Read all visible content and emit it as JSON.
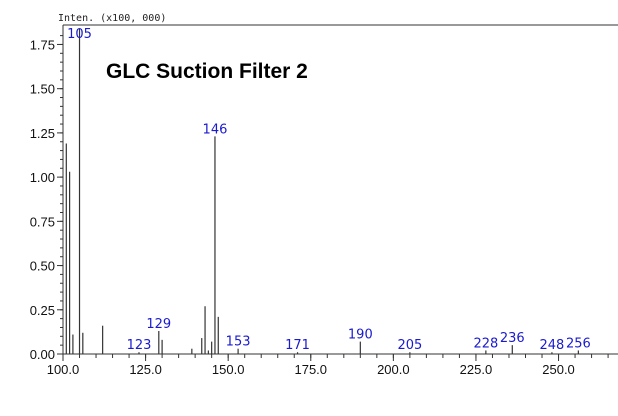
{
  "chart_data": {
    "type": "bar",
    "title": "GLC Suction Filter 2",
    "ylabel": "Inten. (x100, 000)",
    "xlabel": "",
    "xlim": [
      100,
      268
    ],
    "ylim": [
      0,
      1.86
    ],
    "xticks": [
      "100.0",
      "125.0",
      "150.0",
      "175.0",
      "200.0",
      "225.0",
      "250.0"
    ],
    "yticks": [
      "0.00",
      "0.25",
      "0.50",
      "0.75",
      "1.00",
      "1.25",
      "1.50",
      "1.75"
    ],
    "grid": false,
    "peaks": [
      {
        "mz": 101,
        "intensity": 1.19
      },
      {
        "mz": 102,
        "intensity": 1.03
      },
      {
        "mz": 103,
        "intensity": 0.11
      },
      {
        "mz": 105,
        "intensity": 1.84,
        "label": "105"
      },
      {
        "mz": 106,
        "intensity": 0.12
      },
      {
        "mz": 112,
        "intensity": 0.16
      },
      {
        "mz": 123,
        "intensity": 0.01,
        "label": "123"
      },
      {
        "mz": 129,
        "intensity": 0.13,
        "label": "129"
      },
      {
        "mz": 130,
        "intensity": 0.08
      },
      {
        "mz": 139,
        "intensity": 0.03
      },
      {
        "mz": 142,
        "intensity": 0.09
      },
      {
        "mz": 143,
        "intensity": 0.27
      },
      {
        "mz": 144,
        "intensity": 0.02
      },
      {
        "mz": 145,
        "intensity": 0.07
      },
      {
        "mz": 146,
        "intensity": 1.23,
        "label": "146"
      },
      {
        "mz": 147,
        "intensity": 0.21
      },
      {
        "mz": 153,
        "intensity": 0.03,
        "label": "153"
      },
      {
        "mz": 171,
        "intensity": 0.01,
        "label": "171"
      },
      {
        "mz": 190,
        "intensity": 0.07,
        "label": "190"
      },
      {
        "mz": 205,
        "intensity": 0.01,
        "label": "205"
      },
      {
        "mz": 228,
        "intensity": 0.02,
        "label": "228"
      },
      {
        "mz": 236,
        "intensity": 0.05,
        "label": "236"
      },
      {
        "mz": 248,
        "intensity": 0.01,
        "label": "248"
      },
      {
        "mz": 256,
        "intensity": 0.02,
        "label": "256"
      }
    ],
    "colors": {
      "peak": "#333333",
      "label": "#1a1ad0"
    }
  }
}
